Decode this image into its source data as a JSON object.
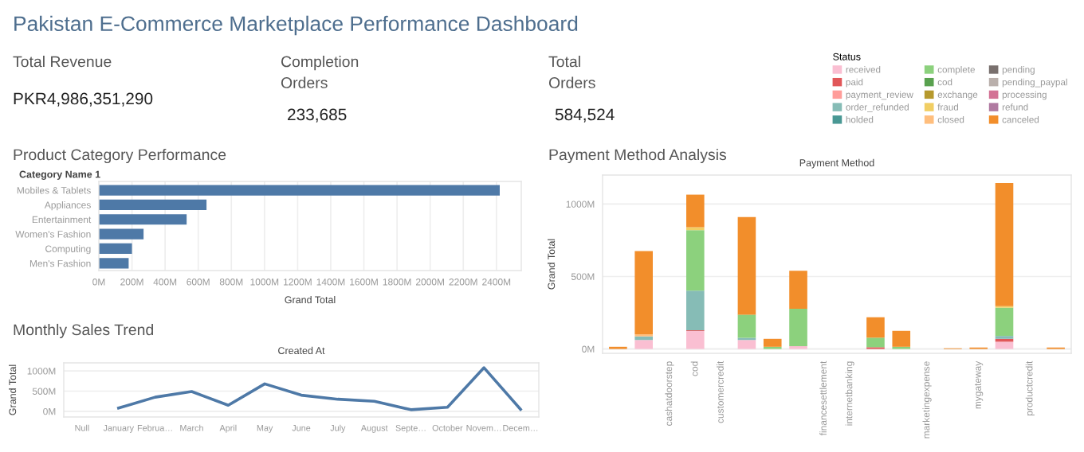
{
  "chart_data": [
    {
      "type": "other",
      "title": "Pakistan E-Commerce Marketplace Performance Dashboard"
    },
    {
      "type": "other",
      "title": "Total Revenue",
      "annotations": [
        "PKR4,986,351,290"
      ]
    },
    {
      "type": "other",
      "title": "Completion\nOrders",
      "annotations": [
        "233,685"
      ]
    },
    {
      "type": "other",
      "title": "Total\nOrders",
      "annotations": [
        "584,524"
      ]
    },
    {
      "type": "bar",
      "title": "Product Category Performance",
      "orientation": "horizontal",
      "ylabel": "Category Name 1",
      "xlabel": "Grand Total",
      "categories": [
        "Mobiles & Tablets",
        "Appliances",
        "Entertainment",
        "Women's Fashion",
        "Computing",
        "Men's Fashion"
      ],
      "values": [
        2420,
        650,
        530,
        270,
        200,
        180
      ],
      "color": "#4e79a7",
      "xlim": [
        0,
        2550
      ],
      "xticks": [
        {
          "value": 0,
          "label": "0M"
        },
        {
          "value": 200,
          "label": "200M"
        },
        {
          "value": 400,
          "label": "400M"
        },
        {
          "value": 600,
          "label": "600M"
        },
        {
          "value": 800,
          "label": "800M"
        },
        {
          "value": 1000,
          "label": "1000M"
        },
        {
          "value": 1200,
          "label": "1200M"
        },
        {
          "value": 1400,
          "label": "1400M"
        },
        {
          "value": 1600,
          "label": "1600M"
        },
        {
          "value": 1800,
          "label": "1800M"
        },
        {
          "value": 2000,
          "label": "2000M"
        },
        {
          "value": 2200,
          "label": "2200M"
        },
        {
          "value": 2400,
          "label": "2400M"
        }
      ],
      "grid": "x"
    },
    {
      "type": "line",
      "title": "Monthly Sales Trend",
      "xlabel": "Created At",
      "ylabel": "Grand Total",
      "categories": [
        "Null",
        "January",
        "Februa…",
        "March",
        "April",
        "May",
        "June",
        "July",
        "August",
        "Septe…",
        "October",
        "Novem…",
        "Decem…"
      ],
      "values": [
        null,
        80,
        350,
        490,
        150,
        680,
        400,
        300,
        250,
        40,
        100,
        1080,
        50
      ],
      "color": "#4e79a7",
      "ylim": [
        -140,
        1200
      ],
      "yticks": [
        {
          "value": 0,
          "label": "0M"
        },
        {
          "value": 500,
          "label": "500M"
        },
        {
          "value": 1000,
          "label": "1000M"
        }
      ],
      "grid": "y"
    },
    {
      "type": "bar",
      "stacked": true,
      "title": "Payment Method Analysis",
      "xlabel": "Payment Method",
      "ylabel": "Grand Total",
      "legend_title": "Status",
      "legend": "top",
      "grid": "y",
      "categories": [
        null,
        null,
        "cashatdoorstep",
        "cod",
        "customercredit",
        null,
        null,
        null,
        "financesettlement",
        "internetbanking",
        null,
        null,
        "marketingexpense",
        null,
        "mygateway",
        null,
        "productcredit",
        null
      ],
      "ylim": [
        -30,
        1200
      ],
      "yticks": [
        {
          "value": 0,
          "label": "0M"
        },
        {
          "value": 500,
          "label": "500M"
        },
        {
          "value": 1000,
          "label": "1000M"
        }
      ],
      "series": [
        {
          "name": "received",
          "color": "#fabfd2",
          "values": [
            null,
            62,
            null,
            124,
            null,
            62,
            null,
            20,
            null,
            null,
            null,
            null,
            null,
            null,
            null,
            50,
            null,
            null
          ]
        },
        {
          "name": "paid",
          "color": "#e15759",
          "values": [
            null,
            null,
            null,
            5,
            null,
            null,
            null,
            null,
            null,
            null,
            12,
            null,
            null,
            null,
            null,
            20,
            null,
            null
          ]
        },
        {
          "name": "payment_review",
          "color": "#ff9d9a",
          "values": [
            null,
            null,
            null,
            null,
            null,
            null,
            null,
            null,
            null,
            null,
            null,
            null,
            null,
            null,
            null,
            null,
            null,
            null
          ]
        },
        {
          "name": "order_refunded",
          "color": "#86bcb6",
          "values": [
            null,
            25,
            null,
            273,
            null,
            15,
            null,
            null,
            null,
            null,
            null,
            null,
            null,
            null,
            null,
            20,
            null,
            null
          ]
        },
        {
          "name": "holded",
          "color": "#499894",
          "values": [
            null,
            null,
            null,
            null,
            null,
            null,
            null,
            null,
            null,
            null,
            null,
            null,
            null,
            null,
            null,
            null,
            null,
            null
          ]
        },
        {
          "name": "complete",
          "color": "#8cd17d",
          "values": [
            null,
            null,
            null,
            418,
            null,
            160,
            15,
            257,
            null,
            null,
            66,
            15,
            null,
            null,
            null,
            195,
            null,
            null
          ]
        },
        {
          "name": "cod",
          "color": "#59a14f",
          "values": [
            null,
            null,
            null,
            null,
            null,
            null,
            null,
            null,
            null,
            null,
            null,
            null,
            null,
            null,
            null,
            null,
            null,
            null
          ]
        },
        {
          "name": "exchange",
          "color": "#b6992d",
          "values": [
            null,
            null,
            null,
            null,
            null,
            null,
            null,
            null,
            null,
            null,
            null,
            null,
            null,
            null,
            null,
            null,
            null,
            null
          ]
        },
        {
          "name": "fraud",
          "color": "#f1ce63",
          "values": [
            null,
            null,
            null,
            20,
            null,
            null,
            null,
            null,
            null,
            null,
            null,
            null,
            null,
            null,
            null,
            10,
            null,
            null
          ]
        },
        {
          "name": "closed",
          "color": "#ffbe7d",
          "values": [
            null,
            15,
            null,
            null,
            null,
            null,
            null,
            null,
            null,
            null,
            null,
            null,
            null,
            null,
            null,
            null,
            null,
            null
          ]
        },
        {
          "name": "pending",
          "color": "#79706e",
          "values": [
            null,
            null,
            null,
            null,
            null,
            null,
            null,
            null,
            null,
            null,
            null,
            null,
            null,
            null,
            null,
            null,
            null,
            null
          ]
        },
        {
          "name": "pending_paypal",
          "color": "#bab0ac",
          "values": [
            null,
            null,
            null,
            null,
            null,
            null,
            null,
            null,
            null,
            null,
            null,
            null,
            null,
            null,
            null,
            null,
            null,
            null
          ]
        },
        {
          "name": "processing",
          "color": "#d37295",
          "values": [
            null,
            null,
            null,
            null,
            null,
            null,
            null,
            null,
            null,
            null,
            null,
            null,
            null,
            null,
            null,
            null,
            null,
            null
          ]
        },
        {
          "name": "refund",
          "color": "#b07aa1",
          "values": [
            null,
            null,
            null,
            null,
            null,
            null,
            null,
            null,
            null,
            null,
            null,
            null,
            null,
            null,
            null,
            null,
            null,
            null
          ]
        },
        {
          "name": "canceled",
          "color": "#f28e2b",
          "values": [
            15,
            574,
            null,
            225,
            null,
            673,
            55,
            263,
            null,
            null,
            141,
            110,
            null,
            5,
            10,
            850,
            null,
            10
          ]
        }
      ]
    }
  ]
}
